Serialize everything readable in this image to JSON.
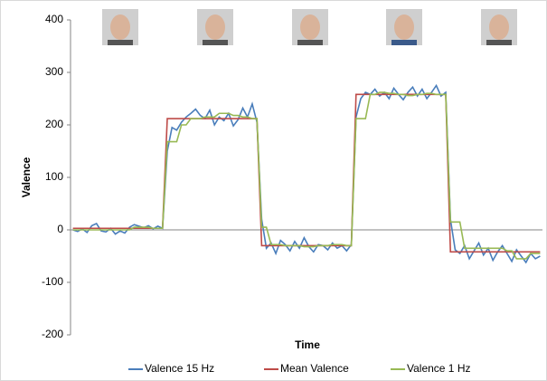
{
  "chart_data": {
    "type": "line",
    "x_label": "Time",
    "y_label": "Valence",
    "ylim": [
      -200,
      400
    ],
    "yticks": [
      -200,
      -100,
      0,
      100,
      200,
      300,
      400
    ],
    "grid": false,
    "legend": "bottom",
    "series": [
      {
        "name": "Valence 15 Hz",
        "color": "#4a7ebb",
        "values": [
          0,
          -3,
          2,
          -5,
          8,
          12,
          -2,
          -4,
          3,
          -8,
          -2,
          -6,
          5,
          10,
          7,
          4,
          8,
          2,
          7,
          3,
          150,
          195,
          190,
          205,
          215,
          222,
          230,
          218,
          212,
          228,
          200,
          215,
          208,
          222,
          198,
          210,
          232,
          215,
          240,
          205,
          20,
          -35,
          -25,
          -45,
          -20,
          -28,
          -40,
          -22,
          -35,
          -15,
          -32,
          -42,
          -28,
          -30,
          -38,
          -25,
          -35,
          -30,
          -40,
          -28,
          215,
          250,
          262,
          258,
          268,
          255,
          262,
          250,
          270,
          258,
          248,
          262,
          272,
          255,
          268,
          250,
          262,
          275,
          255,
          262,
          20,
          -38,
          -45,
          -30,
          -55,
          -40,
          -25,
          -48,
          -35,
          -58,
          -42,
          -30,
          -45,
          -60,
          -38,
          -50,
          -62,
          -45,
          -55,
          -50
        ]
      },
      {
        "name": "Mean Valence",
        "color": "#be4b48",
        "values": [
          3,
          3,
          3,
          3,
          3,
          3,
          3,
          3,
          3,
          3,
          3,
          3,
          3,
          3,
          3,
          3,
          3,
          3,
          3,
          3,
          212,
          212,
          212,
          212,
          212,
          212,
          212,
          212,
          212,
          212,
          212,
          212,
          212,
          212,
          212,
          212,
          212,
          212,
          212,
          212,
          -30,
          -30,
          -30,
          -30,
          -30,
          -30,
          -30,
          -30,
          -30,
          -30,
          -30,
          -30,
          -30,
          -30,
          -30,
          -30,
          -30,
          -30,
          -30,
          -30,
          258,
          258,
          258,
          258,
          258,
          258,
          258,
          258,
          258,
          258,
          258,
          258,
          258,
          258,
          258,
          258,
          258,
          258,
          258,
          258,
          -42,
          -42,
          -42,
          -42,
          -42,
          -42,
          -42,
          -42,
          -42,
          -42,
          -42,
          -42,
          -42,
          -42,
          -42,
          -42,
          -42,
          -42,
          -42,
          -42
        ]
      },
      {
        "name": "Valence 1 Hz",
        "color": "#98b954",
        "values": [
          0,
          0,
          0,
          0,
          0,
          0,
          0,
          0,
          0,
          0,
          0,
          0,
          0,
          5,
          5,
          5,
          5,
          3,
          3,
          3,
          168,
          168,
          168,
          200,
          200,
          212,
          212,
          212,
          215,
          215,
          215,
          222,
          222,
          222,
          218,
          218,
          215,
          215,
          212,
          212,
          5,
          5,
          -28,
          -28,
          -28,
          -30,
          -30,
          -30,
          -30,
          -32,
          -32,
          -32,
          -30,
          -30,
          -30,
          -28,
          -28,
          -28,
          -30,
          -30,
          212,
          212,
          212,
          258,
          258,
          262,
          262,
          260,
          260,
          258,
          258,
          256,
          256,
          258,
          258,
          260,
          260,
          258,
          258,
          258,
          15,
          15,
          15,
          -35,
          -35,
          -35,
          -35,
          -35,
          -35,
          -35,
          -35,
          -35,
          -40,
          -40,
          -55,
          -55,
          -55,
          -45,
          -45,
          -45
        ]
      }
    ]
  }
}
